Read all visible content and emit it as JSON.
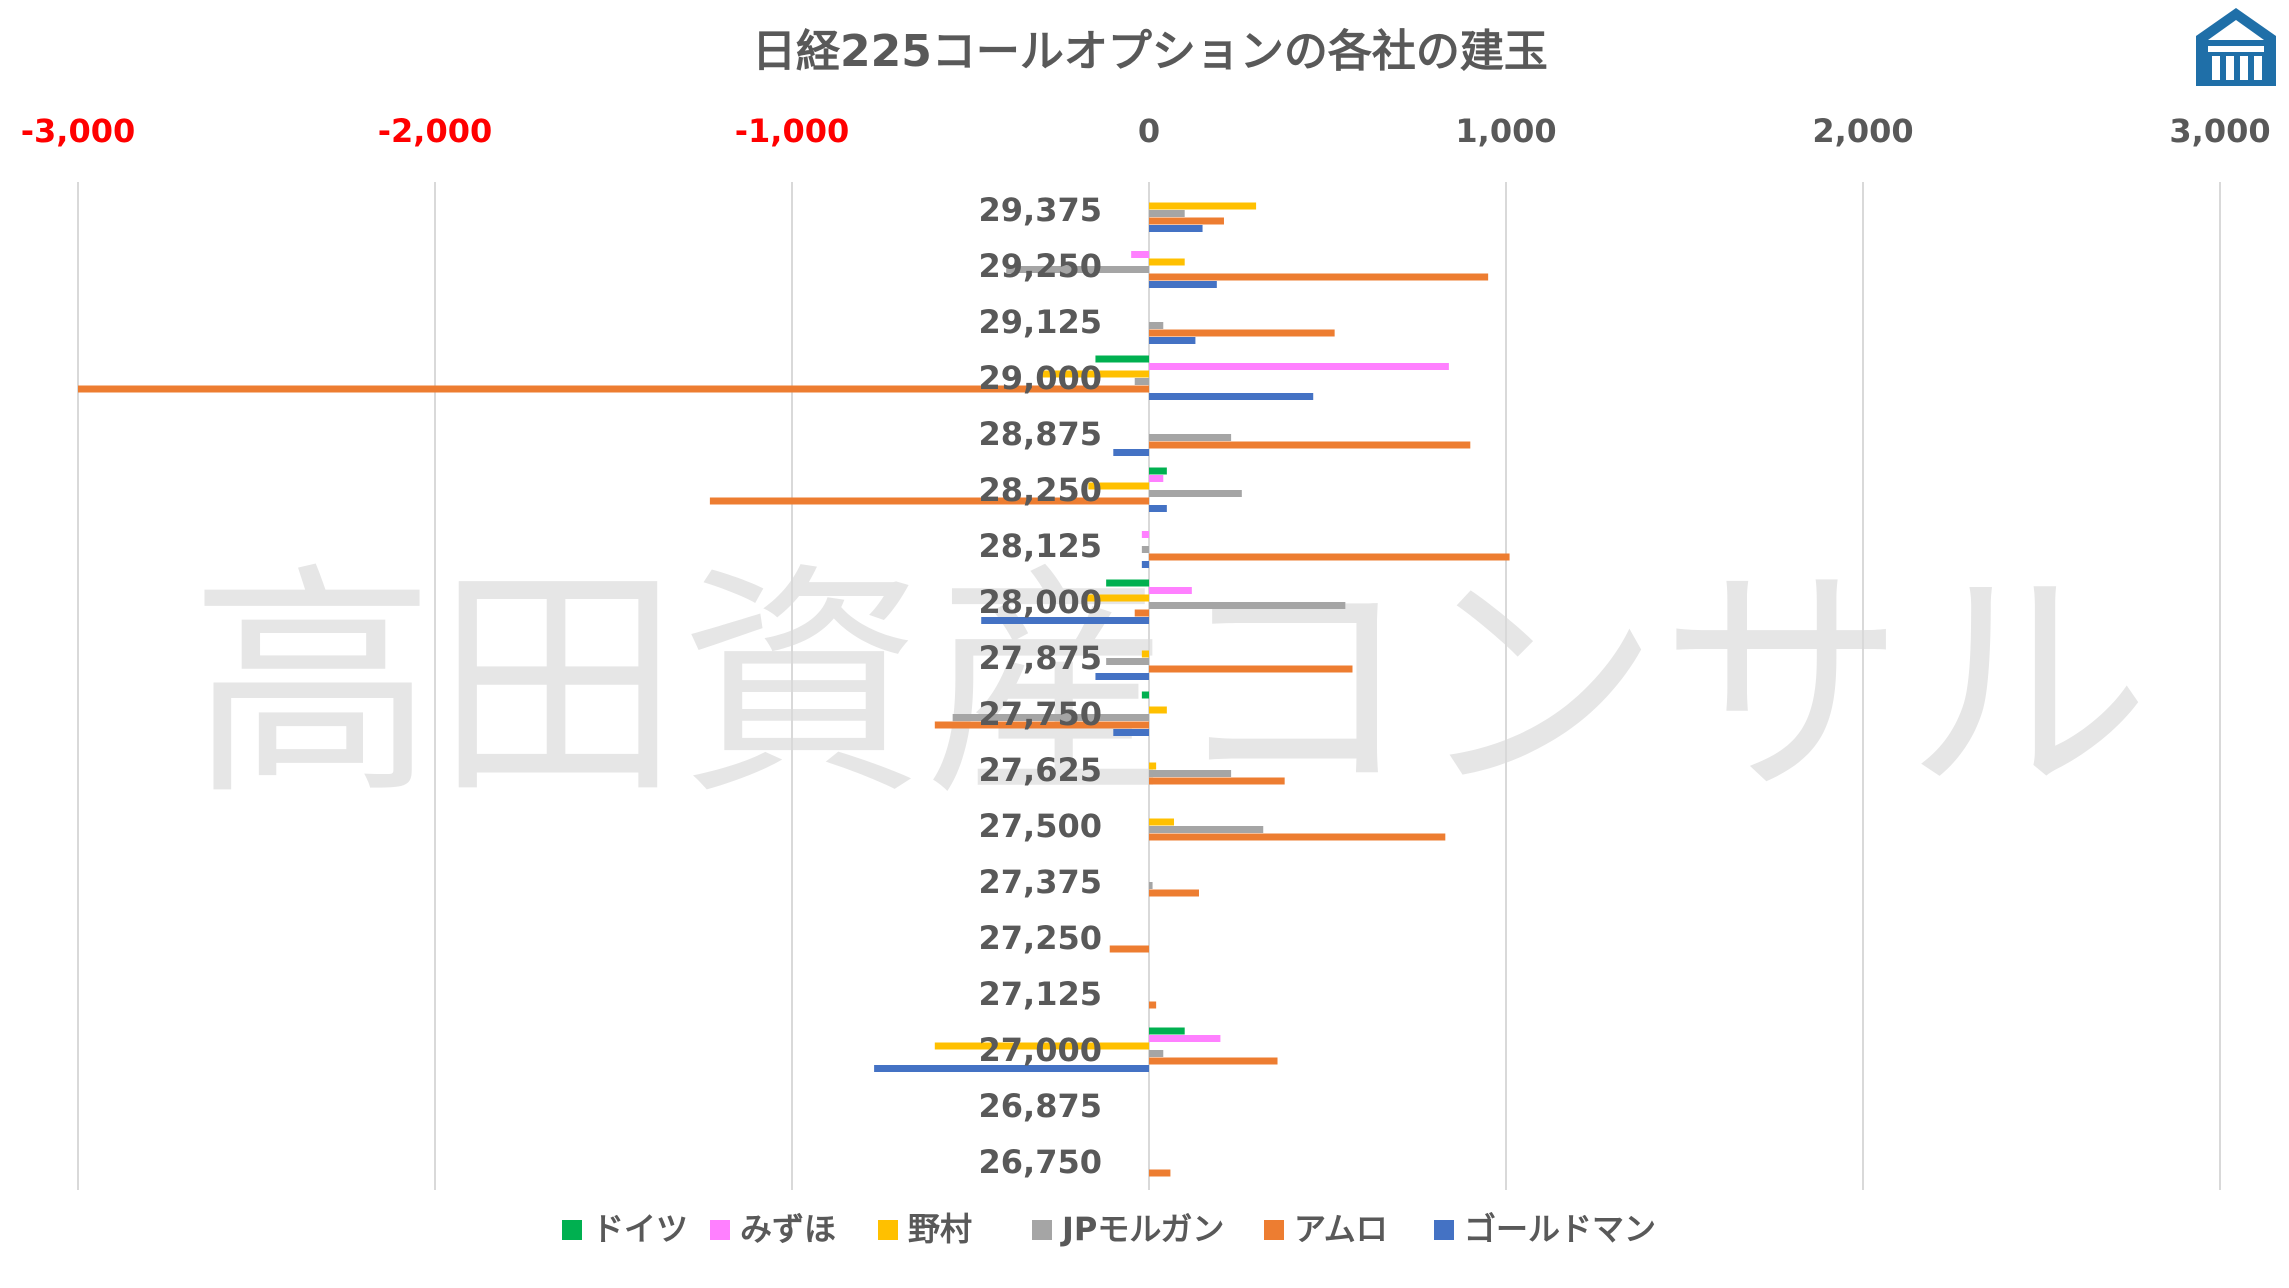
{
  "chart_data": {
    "type": "bar",
    "orientation": "horizontal",
    "title": "日経225コールオプションの各社の建玉",
    "watermark": "高田資産コンサル",
    "xlim": [
      -3000,
      3000
    ],
    "xticks": [
      -3000,
      -2000,
      -1000,
      0,
      1000,
      2000,
      3000
    ],
    "xtick_labels": [
      "-3,000",
      "-2,000",
      "-1,000",
      "0",
      "1,000",
      "2,000",
      "3,000"
    ],
    "negative_tick_color": "#ff0000",
    "grid": "vertical",
    "legend_position": "bottom",
    "categories": [
      "29,375",
      "29,250",
      "29,125",
      "29,000",
      "28,875",
      "28,250",
      "28,125",
      "28,000",
      "27,875",
      "27,750",
      "27,625",
      "27,500",
      "27,375",
      "27,250",
      "27,125",
      "27,000",
      "26,875",
      "26,750"
    ],
    "series": [
      {
        "name": "ドイツ",
        "color": "#00b050",
        "values": [
          0,
          0,
          0,
          -150,
          0,
          50,
          0,
          -120,
          0,
          -20,
          0,
          0,
          0,
          0,
          0,
          100,
          0,
          0
        ]
      },
      {
        "name": "みずほ",
        "color": "#ff80ff",
        "values": [
          0,
          -50,
          0,
          840,
          0,
          40,
          -20,
          120,
          0,
          0,
          0,
          0,
          0,
          0,
          0,
          200,
          0,
          0
        ]
      },
      {
        "name": "野村",
        "color": "#ffc000",
        "values": [
          300,
          100,
          0,
          -300,
          0,
          -170,
          0,
          -180,
          -20,
          50,
          20,
          70,
          0,
          0,
          0,
          -600,
          0,
          0
        ]
      },
      {
        "name": "JPモルガン",
        "color": "#a5a5a5",
        "values": [
          100,
          -400,
          40,
          -40,
          230,
          260,
          -20,
          550,
          -120,
          -550,
          230,
          320,
          10,
          0,
          0,
          40,
          0,
          0
        ]
      },
      {
        "name": "アムロ",
        "color": "#ed7d31",
        "values": [
          210,
          950,
          520,
          -3000,
          900,
          -1230,
          1010,
          -40,
          570,
          -600,
          380,
          830,
          140,
          -110,
          20,
          360,
          0,
          60
        ]
      },
      {
        "name": "ゴールドマン",
        "color": "#4472c4",
        "values": [
          150,
          190,
          130,
          460,
          -100,
          50,
          -20,
          -470,
          -150,
          -100,
          0,
          0,
          0,
          0,
          0,
          -770,
          0,
          0
        ]
      }
    ]
  },
  "logo": {
    "icon": "building-roof-logo-icon",
    "color": "#1f6fa8"
  }
}
